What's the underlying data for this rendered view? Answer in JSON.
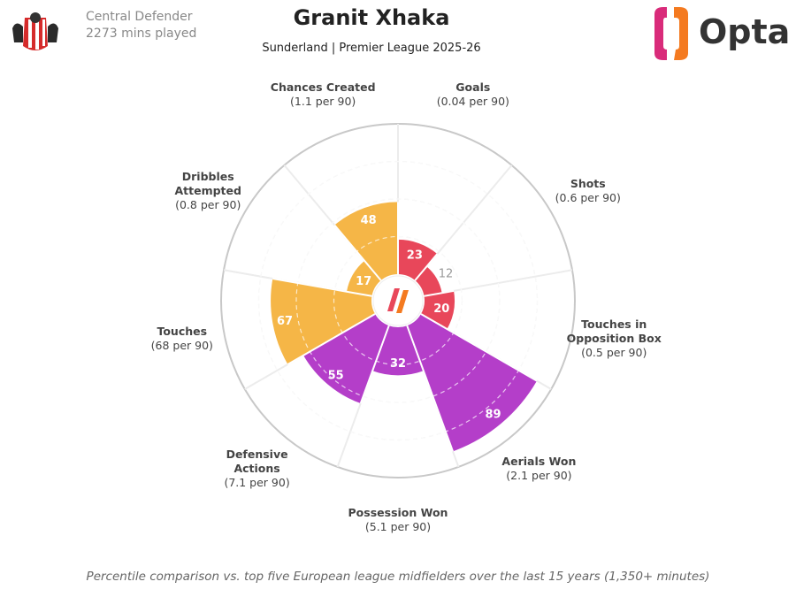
{
  "header": {
    "role": "Central Defender",
    "minutes": "2273 mins played",
    "brand": "Opta"
  },
  "chart_data": {
    "type": "pizza",
    "title": "Granit Xhaka",
    "subtitle": "Sunderland | Premier League 2025-26",
    "categories": [
      "Goals",
      "Shots",
      "Touches in Opposition Box",
      "Aerials Won",
      "Possession Won",
      "Defensive Actions",
      "Touches",
      "Dribbles Attempted",
      "Chances Created"
    ],
    "sublabels": [
      "(0.04 per 90)",
      "(0.6 per 90)",
      "(0.5 per 90)",
      "(2.1 per 90)",
      "(5.1 per 90)",
      "(7.1 per 90)",
      "(68 per 90)",
      "(0.8 per 90)",
      "(1.1 per 90)"
    ],
    "values": [
      23,
      12,
      20,
      89,
      32,
      55,
      67,
      17,
      48
    ],
    "colors": [
      "#e8475a",
      "#e8475a",
      "#e8475a",
      "#b43ec9",
      "#b43ec9",
      "#b43ec9",
      "#f5b647",
      "#f5b647",
      "#f5b647"
    ],
    "rlim": [
      0,
      100
    ],
    "rticks": [
      25,
      50,
      75,
      100
    ],
    "footnote": "Percentile comparison vs. top five European league midfielders over the last 15 years (1,350+ minutes)"
  }
}
